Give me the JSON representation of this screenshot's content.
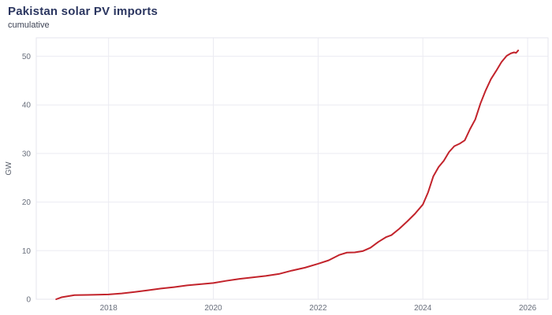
{
  "chart_data": {
    "type": "line",
    "title": "Pakistan solar PV imports",
    "subtitle": "cumulative",
    "xlabel": "",
    "ylabel": "GW",
    "x_ticks": [
      2018,
      2020,
      2022,
      2024,
      2026
    ],
    "y_ticks": [
      0,
      10,
      20,
      30,
      40,
      50
    ],
    "xlim": [
      2016.62,
      2026.39
    ],
    "ylim": [
      0,
      53.8
    ],
    "grid": true,
    "legend": "none",
    "line_color": "#c2232b",
    "series": [
      {
        "name": "cumulative solar PV imports (GW)",
        "x": [
          2017.0,
          2017.1,
          2017.35,
          2017.6,
          2017.85,
          2018.0,
          2018.25,
          2018.5,
          2018.75,
          2019.0,
          2019.25,
          2019.5,
          2019.75,
          2020.0,
          2020.25,
          2020.5,
          2020.75,
          2021.0,
          2021.25,
          2021.5,
          2021.75,
          2022.0,
          2022.2,
          2022.4,
          2022.55,
          2022.7,
          2022.85,
          2023.0,
          2023.15,
          2023.3,
          2023.4,
          2023.55,
          2023.7,
          2023.85,
          2024.0,
          2024.1,
          2024.2,
          2024.3,
          2024.4,
          2024.5,
          2024.6,
          2024.7,
          2024.8,
          2024.9,
          2025.0,
          2025.1,
          2025.2,
          2025.3,
          2025.4,
          2025.5,
          2025.6,
          2025.68,
          2025.74,
          2025.78,
          2025.82
        ],
        "y": [
          0,
          0.4,
          0.85,
          0.9,
          0.95,
          1.0,
          1.2,
          1.5,
          1.85,
          2.2,
          2.5,
          2.85,
          3.1,
          3.35,
          3.8,
          4.2,
          4.5,
          4.8,
          5.2,
          5.9,
          6.5,
          7.3,
          8.0,
          9.1,
          9.6,
          9.65,
          9.9,
          10.6,
          11.8,
          12.8,
          13.2,
          14.5,
          16.0,
          17.6,
          19.5,
          22.0,
          25.3,
          27.2,
          28.5,
          30.3,
          31.5,
          32.0,
          32.7,
          35.0,
          37.0,
          40.3,
          43.0,
          45.3,
          47.0,
          48.8,
          50.1,
          50.6,
          50.8,
          50.7,
          51.2
        ]
      }
    ]
  }
}
